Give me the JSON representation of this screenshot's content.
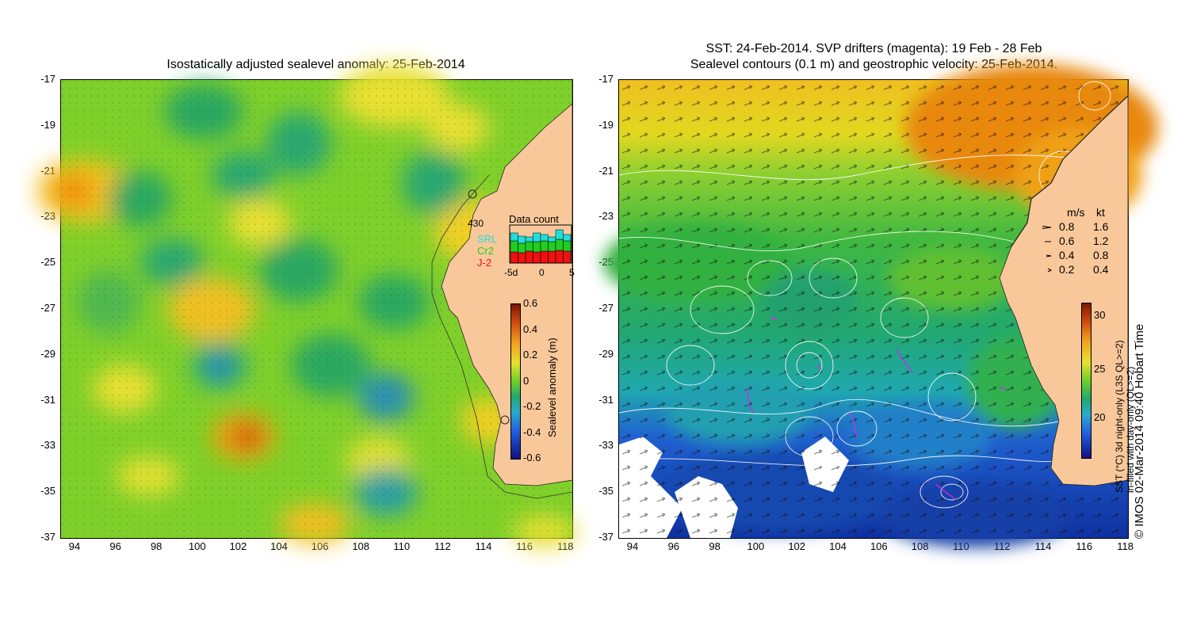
{
  "left_panel": {
    "title": "Isostatically adjusted sealevel anomaly: 25-Feb-2014",
    "y_ticks": [
      "-17",
      "-19",
      "-21",
      "-23",
      "-25",
      "-27",
      "-29",
      "-31",
      "-33",
      "-35",
      "-37"
    ],
    "x_ticks": [
      "94",
      "96",
      "98",
      "100",
      "102",
      "104",
      "106",
      "108",
      "110",
      "112",
      "114",
      "116",
      "118"
    ],
    "data_count": {
      "title": "Data count",
      "max": "430",
      "legend": [
        {
          "label": "SRL",
          "color": "#22dddd"
        },
        {
          "label": "Cr2",
          "color": "#22cc22"
        },
        {
          "label": "J-2",
          "color": "#ee1111"
        }
      ],
      "x_ticks": [
        "-5d",
        "0",
        "5"
      ]
    },
    "colorbar": {
      "label": "Sealevel anomaly (m)",
      "ticks": [
        "0.6",
        "0.4",
        "0.2",
        "0",
        "-0.2",
        "-0.4",
        "-0.6"
      ]
    }
  },
  "right_panel": {
    "title_line1": "SST: 24-Feb-2014. SVP drifters (magenta): 19 Feb - 28 Feb",
    "title_line2": "Sealevel contours (0.1 m) and geostrophic velocity: 25-Feb-2014.",
    "y_ticks": [
      "-17",
      "-19",
      "-21",
      "-23",
      "-25",
      "-27",
      "-29",
      "-31",
      "-33",
      "-35",
      "-37"
    ],
    "x_ticks": [
      "94",
      "96",
      "98",
      "100",
      "102",
      "104",
      "106",
      "108",
      "110",
      "112",
      "114",
      "116",
      "118"
    ],
    "velocity_legend": {
      "header_ms": "m/s",
      "header_kt": "kt",
      "rows": [
        {
          "ms": "0.8",
          "kt": "1.6"
        },
        {
          "ms": "0.6",
          "kt": "1.2"
        },
        {
          "ms": "0.4",
          "kt": "0.8"
        },
        {
          "ms": "0.2",
          "kt": "0.4"
        }
      ]
    },
    "colorbar": {
      "ticks": [
        "30",
        "25",
        "20"
      ],
      "label_line1": "SST (°C) 3d night-only (L3S QL>=2)",
      "label_line2": "in-filled with day-only (QL>=2)"
    },
    "credit": "© IMOS 02-Mar-2014 09:40 Hobart Time"
  }
}
